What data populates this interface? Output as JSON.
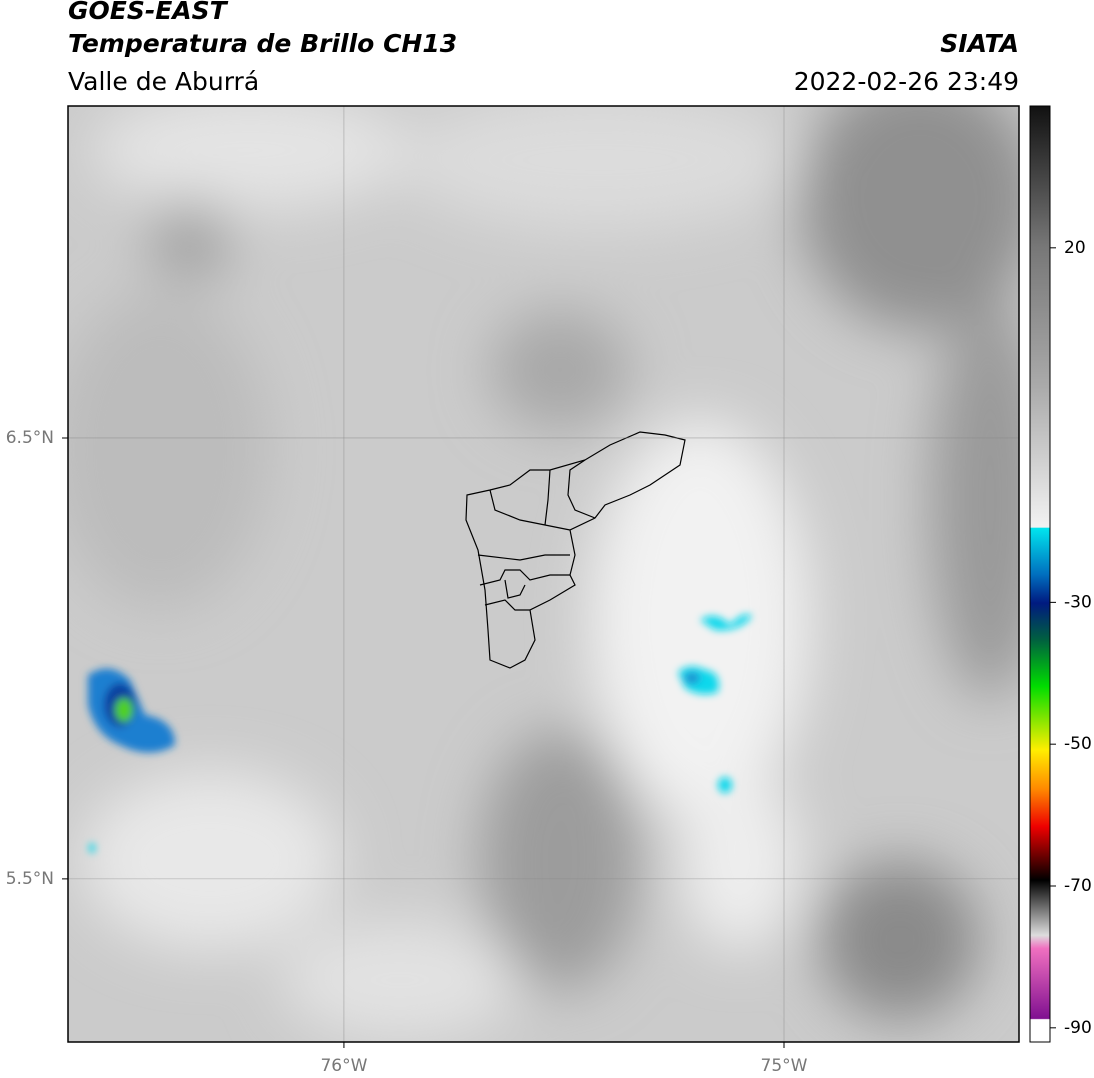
{
  "header": {
    "satellite": "GOES-EAST",
    "product": "Temperatura de Brillo CH13",
    "region": "Valle de Aburrá",
    "agency": "SIATA",
    "datetime": "2022-02-26 23:49"
  },
  "map": {
    "lonlim": [
      -76.627,
      -74.466
    ],
    "latlim": [
      5.13,
      7.253
    ],
    "lonticks": [
      {
        "value": -76,
        "label": "76°W"
      },
      {
        "value": -75,
        "label": "75°W"
      }
    ],
    "latticks": [
      {
        "value": 6.5,
        "label": "6.5°N"
      },
      {
        "value": 5.5,
        "label": "5.5°N"
      }
    ],
    "grid": true
  },
  "colorbar": {
    "lim": [
      -92,
      40
    ],
    "ticks": [
      20,
      -30,
      -50,
      -70,
      -90
    ]
  }
}
